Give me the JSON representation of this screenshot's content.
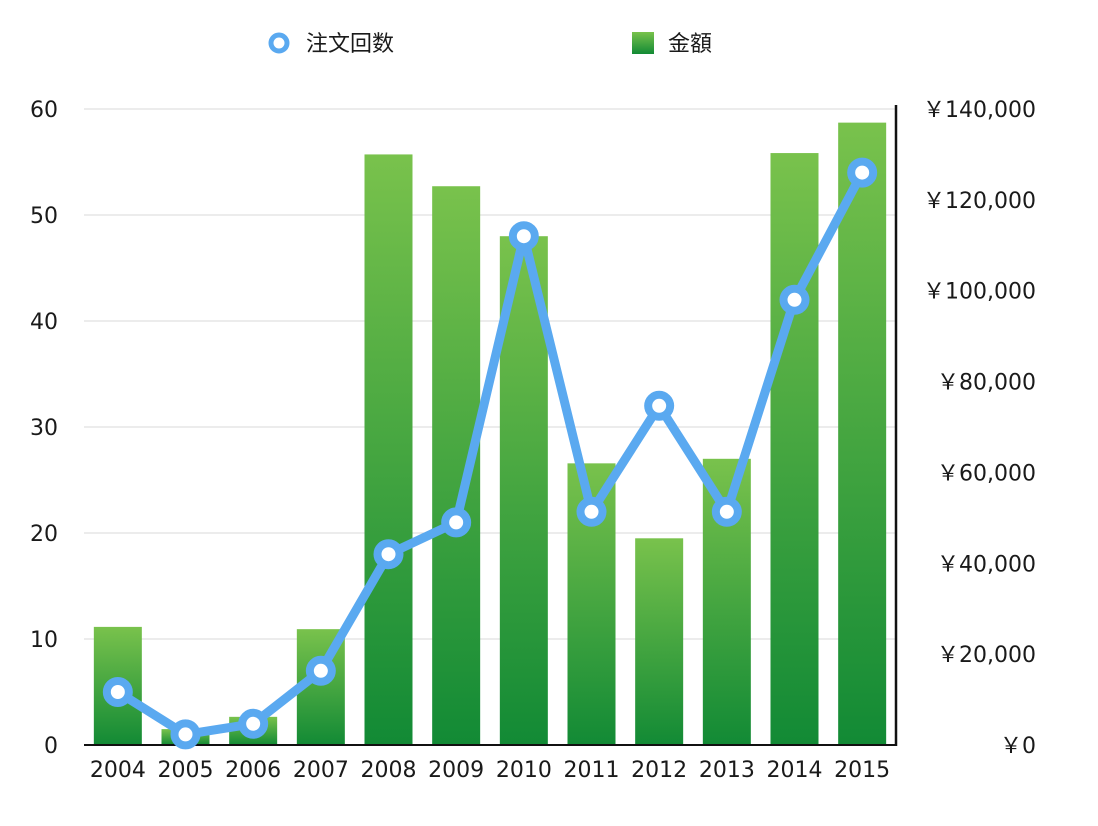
{
  "chart_data": {
    "type": "bar",
    "categories": [
      "2004",
      "2005",
      "2006",
      "2007",
      "2008",
      "2009",
      "2010",
      "2011",
      "2012",
      "2013",
      "2014",
      "2015"
    ],
    "series": [
      {
        "name": "金額",
        "type": "bar",
        "axis": "right",
        "color": "#1f9a3a",
        "values": [
          26000,
          3500,
          6200,
          25500,
          130000,
          123000,
          112000,
          62000,
          45500,
          63000,
          130300,
          137000
        ]
      },
      {
        "name": "注文回数",
        "type": "line",
        "axis": "left",
        "color": "#5aa9f0",
        "values": [
          5,
          1,
          2,
          7,
          18,
          21,
          48,
          22,
          32,
          22,
          42,
          54
        ]
      }
    ],
    "y_left": {
      "ylim": [
        0,
        60
      ],
      "ticks": [
        "0",
        "10",
        "20",
        "30",
        "40",
        "50",
        "60"
      ]
    },
    "y_right": {
      "ylim": [
        0,
        140000
      ],
      "ticks": [
        "￥0",
        "￥20,000",
        "￥40,000",
        "￥60,000",
        "￥80,000",
        "￥100,000",
        "￥120,000",
        "￥140,000"
      ]
    },
    "grid": true,
    "legend": {
      "placement": "top-center",
      "entries": [
        "注文回数",
        "金額"
      ]
    }
  }
}
